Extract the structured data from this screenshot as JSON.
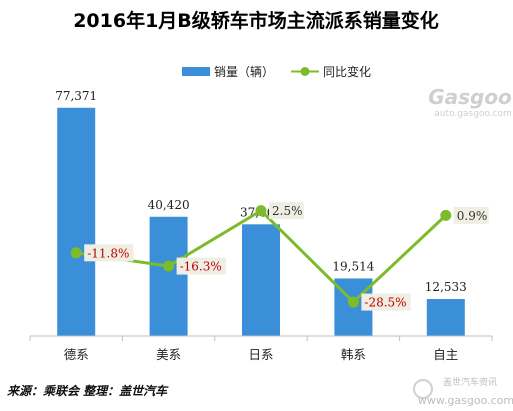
{
  "chart_data": {
    "type": "bar",
    "title": "2016年1月B级轿车市场主流派系销量变化",
    "categories": [
      "德系",
      "美系",
      "日系",
      "韩系",
      "自主"
    ],
    "series": [
      {
        "name": "销量（辆）",
        "type": "bar",
        "values": [
          77371,
          40420,
          37860,
          19514,
          12533
        ],
        "labels": [
          "77,371",
          "40,420",
          "37,860",
          "19,514",
          "12,533"
        ],
        "color": "#3A8FD8"
      },
      {
        "name": "同比变化",
        "type": "line",
        "values": [
          -11.8,
          -16.3,
          2.5,
          -28.5,
          0.9
        ],
        "labels": [
          "-11.8%",
          "-16.3%",
          "2.5%",
          "-28.5%",
          "0.9%"
        ],
        "color": "#7DBB2A"
      }
    ],
    "ylim_bar": [
      0,
      80000
    ],
    "ylim_line": [
      -40,
      40
    ],
    "legend_position": "top-right",
    "grid": false,
    "label_colors": {
      "negative": "#C00000",
      "positive": "#333333"
    }
  },
  "footer": {
    "source": "来源：乘联会 整理：盖世汽车"
  },
  "watermark": {
    "top_brand": "Gasgoo",
    "top_url": "auto.gasgoo.com",
    "bottom_brand": "盖世汽车资讯",
    "bottom_url": "www.gasgoo.com"
  }
}
